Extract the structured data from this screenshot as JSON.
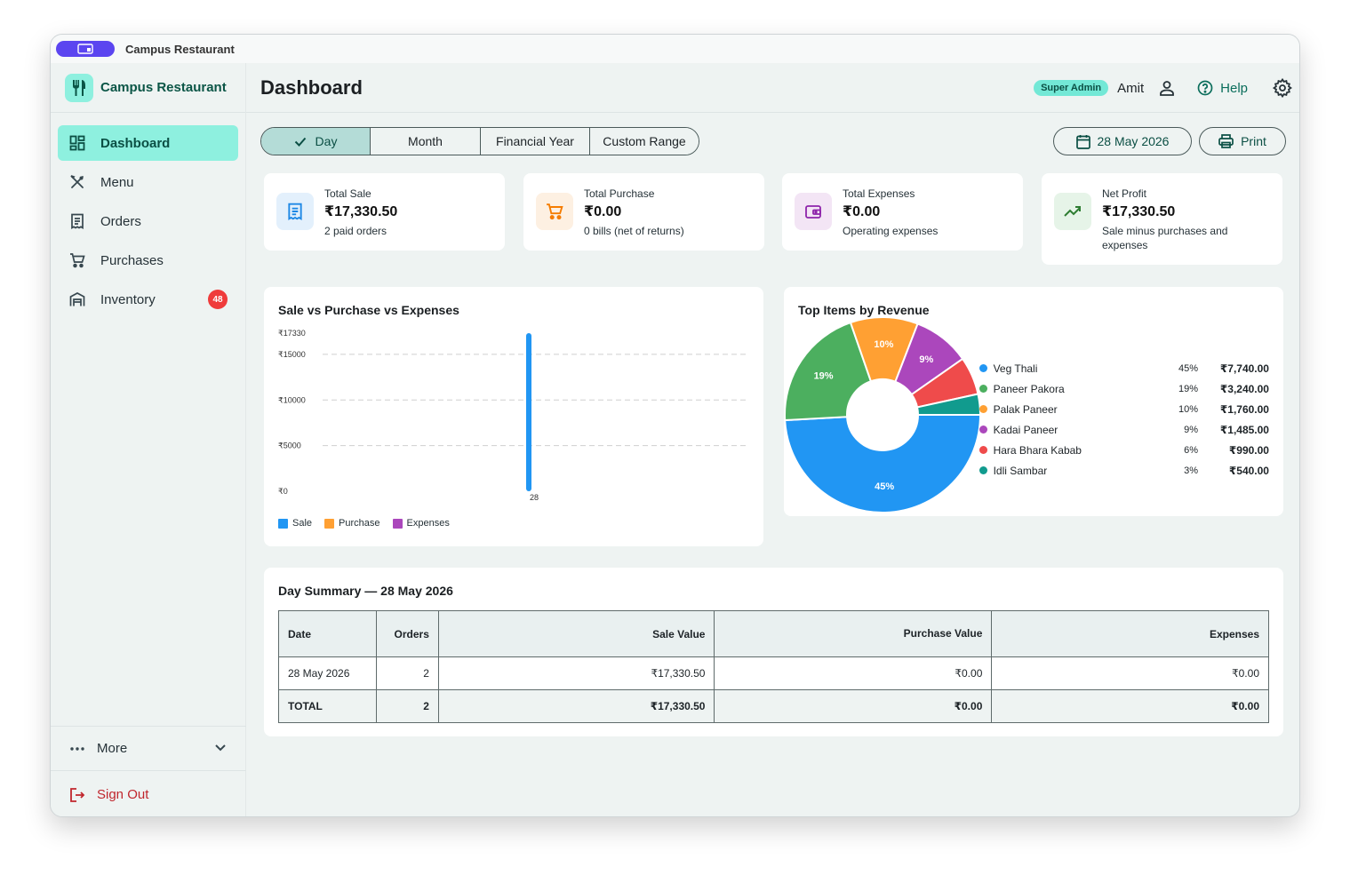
{
  "window": {
    "title": "Campus Restaurant"
  },
  "brand": {
    "name": "Campus Restaurant"
  },
  "sidebar": {
    "items": [
      {
        "label": "Dashboard",
        "icon": "dashboard-icon",
        "active": true
      },
      {
        "label": "Menu",
        "icon": "utensils-icon"
      },
      {
        "label": "Orders",
        "icon": "receipt-icon"
      },
      {
        "label": "Purchases",
        "icon": "cart-icon"
      },
      {
        "label": "Inventory",
        "icon": "warehouse-icon",
        "badge": "48"
      }
    ],
    "more_label": "More",
    "signout_label": "Sign Out"
  },
  "header": {
    "title": "Dashboard",
    "role": "Super Admin",
    "user": "Amit",
    "help": "Help"
  },
  "filters": {
    "ranges": [
      "Day",
      "Month",
      "Financial Year",
      "Custom Range"
    ],
    "selected": "Day",
    "date": "28 May 2026",
    "print": "Print"
  },
  "stats": [
    {
      "label": "Total Sale",
      "value": "₹17,330.50",
      "sub": "2 paid orders",
      "icon": "receipt-icon",
      "color": "#1e88e5",
      "bg": "#e3f0fc"
    },
    {
      "label": "Total Purchase",
      "value": "₹0.00",
      "sub": "0 bills (net of returns)",
      "icon": "cart-icon",
      "color": "#f57c00",
      "bg": "#fdf0e2"
    },
    {
      "label": "Total Expenses",
      "value": "₹0.00",
      "sub": "Operating expenses",
      "icon": "wallet-icon",
      "color": "#8e24aa",
      "bg": "#f3e5f5"
    },
    {
      "label": "Net Profit",
      "value": "₹17,330.50",
      "sub": "Sale minus purchases and expenses",
      "icon": "trending-up-icon",
      "color": "#2e7d32",
      "bg": "#e6f4e8"
    }
  ],
  "bar_chart": {
    "title": "Sale vs Purchase vs Expenses",
    "legend": [
      {
        "name": "Sale",
        "color": "#2196f3"
      },
      {
        "name": "Purchase",
        "color": "#ffa033"
      },
      {
        "name": "Expenses",
        "color": "#ab47bc"
      }
    ]
  },
  "pie_chart": {
    "title": "Top Items by Revenue",
    "items": [
      {
        "name": "Veg Thali",
        "pct": "45%",
        "value": "₹7,740.00",
        "color": "#2196f3"
      },
      {
        "name": "Paneer Pakora",
        "pct": "19%",
        "value": "₹3,240.00",
        "color": "#4caf5f"
      },
      {
        "name": "Palak Paneer",
        "pct": "10%",
        "value": "₹1,760.00",
        "color": "#ffa033"
      },
      {
        "name": "Kadai Paneer",
        "pct": "9%",
        "value": "₹1,485.00",
        "color": "#ab47bc"
      },
      {
        "name": "Hara Bhara Kabab",
        "pct": "6%",
        "value": "₹990.00",
        "color": "#ef4b4b"
      },
      {
        "name": "Idli Sambar",
        "pct": "3%",
        "value": "₹540.00",
        "color": "#119b8e"
      }
    ]
  },
  "chart_data": [
    {
      "type": "bar",
      "title": "Sale vs Purchase vs Expenses",
      "categories": [
        "28"
      ],
      "series": [
        {
          "name": "Sale",
          "values": [
            17330.5
          ]
        },
        {
          "name": "Purchase",
          "values": [
            0
          ]
        },
        {
          "name": "Expenses",
          "values": [
            0
          ]
        }
      ],
      "yticks": [
        "₹0",
        "₹5000",
        "₹10000",
        "₹15000",
        "₹17330"
      ],
      "ylim": [
        0,
        17330
      ],
      "grid": true,
      "legend": "bottom-left"
    },
    {
      "type": "pie",
      "title": "Top Items by Revenue",
      "labels": [
        "Veg Thali",
        "Paneer Pakora",
        "Palak Paneer",
        "Kadai Paneer",
        "Hara Bhara Kabab",
        "Idli Sambar"
      ],
      "values": [
        7740,
        3240,
        1760,
        1485,
        990,
        540
      ],
      "slice_labels": [
        "45%",
        "19%",
        "10%",
        "9%",
        "",
        ""
      ],
      "legend": "right"
    }
  ],
  "summary": {
    "title": "Day Summary — 28 May 2026",
    "columns": [
      "Date",
      "Orders",
      "Sale Value",
      "Purchase Value",
      "Expenses"
    ],
    "rows": [
      [
        "28 May 2026",
        "2",
        "₹17,330.50",
        "₹0.00",
        "₹0.00"
      ]
    ],
    "total": [
      "TOTAL",
      "2",
      "₹17,330.50",
      "₹0.00",
      "₹0.00"
    ]
  }
}
